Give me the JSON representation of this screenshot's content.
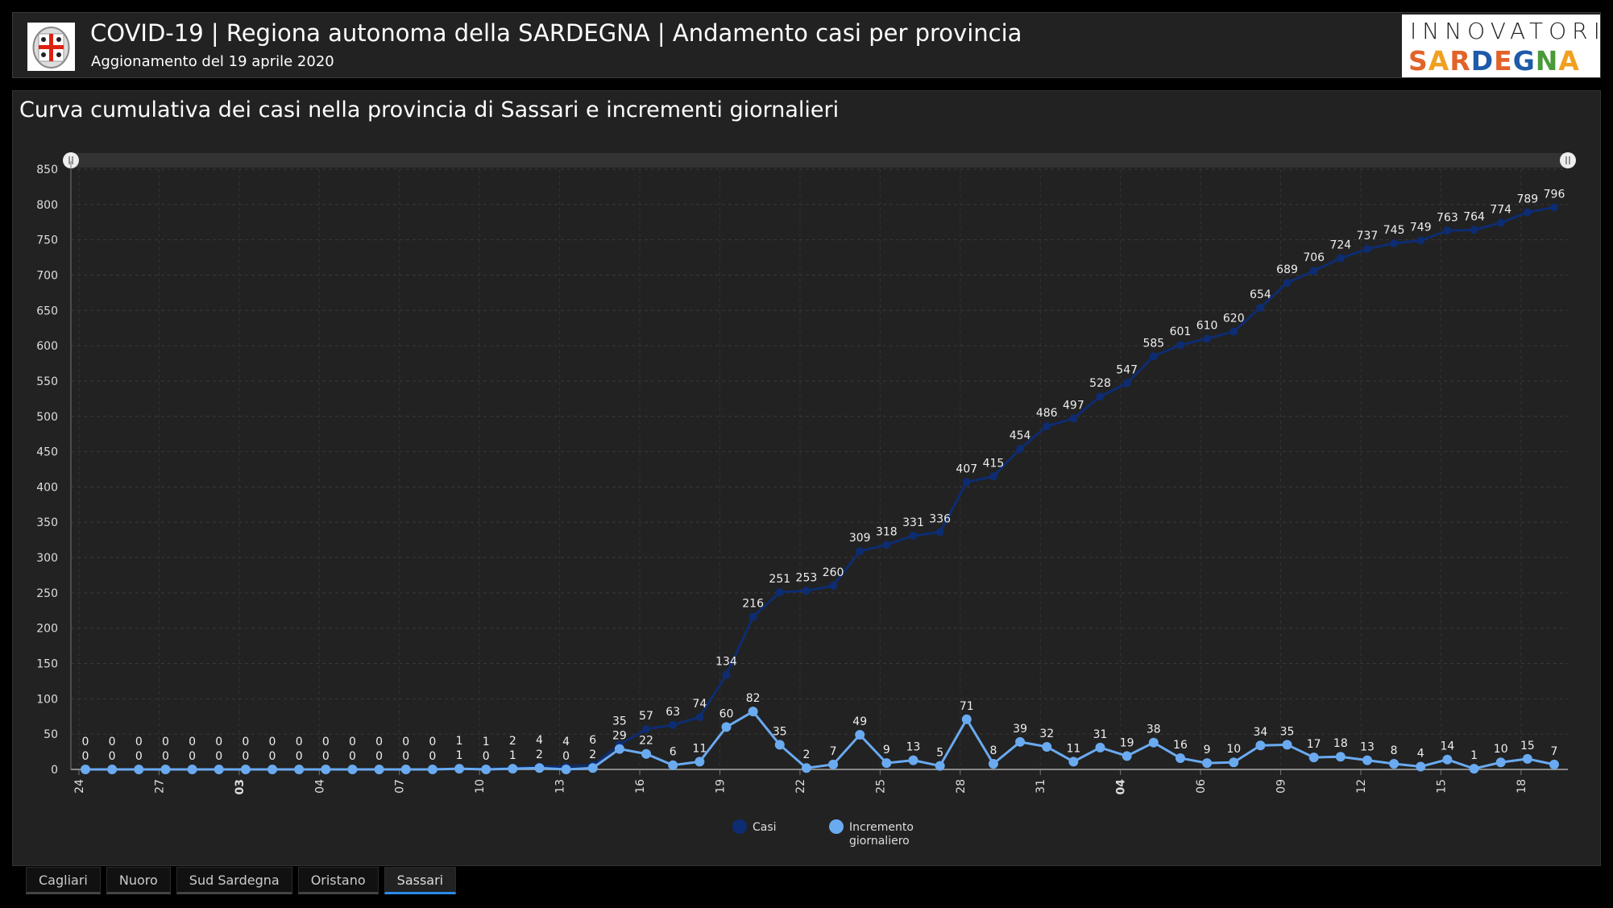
{
  "header": {
    "title": "COVID-19 | Regiona autonoma della SARDEGNA | Andamento casi per provincia",
    "subtitle": "Aggionamento del 19 aprile 2020",
    "logo_text_1": "INNOVATORI",
    "logo_text_2": "SARDEGNA"
  },
  "panel": {
    "title": "Curva cumulativa dei casi nella provincia di Sassari e incrementi giornalieri"
  },
  "tabs": [
    {
      "label": "Cagliari"
    },
    {
      "label": "Nuoro"
    },
    {
      "label": "Sud Sardegna"
    },
    {
      "label": "Oristano"
    },
    {
      "label": "Sassari",
      "active": true
    }
  ],
  "chart_data": {
    "type": "line",
    "title": "",
    "x_start": "2020-02-24",
    "x_end": "2020-04-19",
    "x_tick_labels": [
      {
        "label": "24",
        "index": 0
      },
      {
        "label": "27",
        "index": 3
      },
      {
        "label": "03",
        "index": 6,
        "bold": true
      },
      {
        "label": "04",
        "index": 9
      },
      {
        "label": "07",
        "index": 12
      },
      {
        "label": "10",
        "index": 15
      },
      {
        "label": "13",
        "index": 18
      },
      {
        "label": "16",
        "index": 21
      },
      {
        "label": "19",
        "index": 24
      },
      {
        "label": "22",
        "index": 27
      },
      {
        "label": "25",
        "index": 30
      },
      {
        "label": "28",
        "index": 33
      },
      {
        "label": "31",
        "index": 36
      },
      {
        "label": "04",
        "index": 39,
        "bold": true
      },
      {
        "label": "06",
        "index": 42
      },
      {
        "label": "09",
        "index": 45
      },
      {
        "label": "12",
        "index": 48
      },
      {
        "label": "15",
        "index": 51
      },
      {
        "label": "18",
        "index": 54
      }
    ],
    "ylim": [
      0,
      850
    ],
    "y_ticks": [
      0,
      50,
      100,
      150,
      200,
      250,
      300,
      350,
      400,
      450,
      500,
      550,
      600,
      650,
      700,
      750,
      800,
      850
    ],
    "grid": true,
    "legend_position": "bottom",
    "series": [
      {
        "name": "Casi",
        "color": "#0d2c72",
        "values": [
          0,
          0,
          0,
          0,
          0,
          0,
          0,
          0,
          0,
          0,
          0,
          0,
          0,
          0,
          1,
          1,
          2,
          4,
          4,
          6,
          35,
          57,
          63,
          74,
          134,
          216,
          251,
          253,
          260,
          309,
          318,
          331,
          336,
          407,
          415,
          454,
          486,
          497,
          528,
          547,
          585,
          601,
          610,
          620,
          654,
          689,
          706,
          724,
          737,
          745,
          749,
          763,
          764,
          774,
          789,
          796
        ]
      },
      {
        "name": "Incremento giornaliero",
        "color": "#6aaaf0",
        "values": [
          0,
          0,
          0,
          0,
          0,
          0,
          0,
          0,
          0,
          0,
          0,
          0,
          0,
          0,
          1,
          0,
          1,
          2,
          0,
          2,
          29,
          22,
          6,
          11,
          60,
          82,
          35,
          2,
          7,
          49,
          9,
          13,
          5,
          71,
          8,
          39,
          32,
          11,
          31,
          19,
          38,
          16,
          9,
          10,
          34,
          35,
          17,
          18,
          13,
          8,
          4,
          14,
          1,
          10,
          15,
          7
        ]
      }
    ]
  }
}
